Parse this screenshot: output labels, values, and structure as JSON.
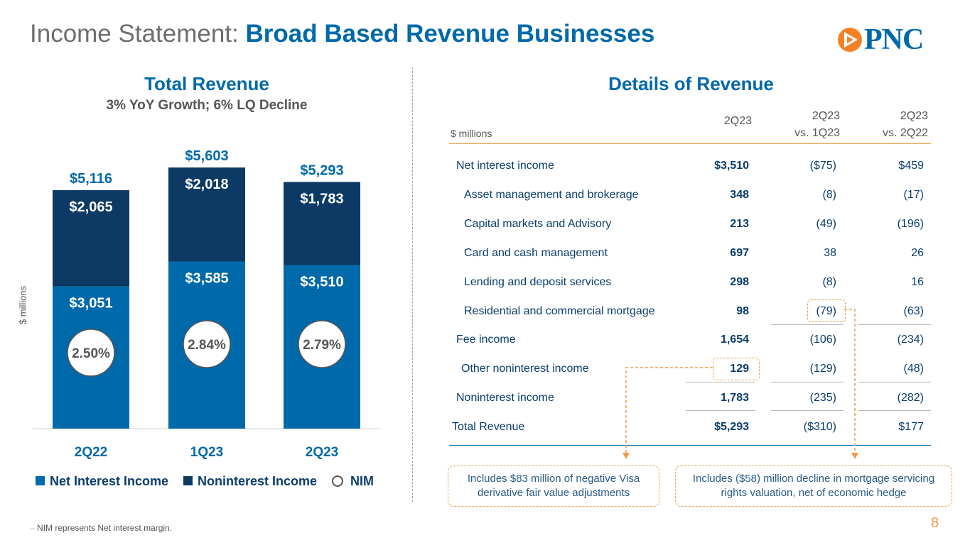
{
  "header": {
    "title_prefix": "Income Statement:",
    "title_main": "Broad Based Revenue Businesses",
    "logo_text": "PNC",
    "page_number": "8"
  },
  "chart_data": {
    "type": "bar",
    "title": "Total Revenue",
    "subtitle": "3% YoY Growth; 6% LQ Decline",
    "ylabel": "$ millions",
    "categories": [
      "2Q22",
      "1Q23",
      "2Q23"
    ],
    "ylim": [
      0,
      5603
    ],
    "series": [
      {
        "name": "Net Interest Income",
        "color": "#0069aa",
        "values": [
          3051,
          3585,
          3510
        ],
        "labels": [
          "$3,051",
          "$3,585",
          "$3,510"
        ]
      },
      {
        "name": "Noninterest Income",
        "color": "#0c3a64",
        "values": [
          2065,
          2018,
          1783
        ],
        "labels": [
          "$2,065",
          "$2,018",
          "$1,783"
        ]
      }
    ],
    "totals": [
      5116,
      5603,
      5293
    ],
    "total_labels": [
      "$5,116",
      "$5,603",
      "$5,293"
    ],
    "nim_labels": [
      "2.50%",
      "2.84%",
      "2.79%"
    ],
    "legend": [
      {
        "label": "Net Interest Income",
        "marker": "square-blue"
      },
      {
        "label": "Noninterest Income",
        "marker": "square-navy"
      },
      {
        "label": "NIM",
        "marker": "ring"
      }
    ]
  },
  "details": {
    "title": "Details of Revenue",
    "unit": "$ millions",
    "columns": [
      {
        "line1": "",
        "line2": "2Q23"
      },
      {
        "line1": "2Q23",
        "line2": "vs. 1Q23"
      },
      {
        "line1": "2Q23",
        "line2": "vs. 2Q22"
      }
    ],
    "rows": [
      {
        "label": "Net interest income",
        "v1": "$3,510",
        "v2": "($75)",
        "v3": "$459"
      },
      {
        "label": "Asset management and brokerage",
        "v1": "348",
        "v2": "(8)",
        "v3": "(17)"
      },
      {
        "label": "Capital markets  and Advisory",
        "v1": "213",
        "v2": "(49)",
        "v3": "(196)"
      },
      {
        "label": "Card and cash management",
        "v1": "697",
        "v2": "38",
        "v3": "26"
      },
      {
        "label": "Lending and deposit services",
        "v1": "298",
        "v2": "(8)",
        "v3": "16"
      },
      {
        "label": "Residential and commercial mortgage",
        "v1": "98",
        "v2": "(79)",
        "v3": "(63)"
      },
      {
        "label": "Fee income",
        "v1": "1,654",
        "v2": "(106)",
        "v3": "(234)"
      },
      {
        "label": "Other noninterest income",
        "v1": "129",
        "v2": "(129)",
        "v3": "(48)"
      },
      {
        "label": "Noninterest income",
        "v1": "1,783",
        "v2": "(235)",
        "v3": "(282)"
      },
      {
        "label": "Total Revenue",
        "v1": "$5,293",
        "v2": "($310)",
        "v3": "$177"
      }
    ],
    "notes": {
      "visa": "Includes $83 million of negative Visa derivative fair value adjustments",
      "mortgage": "Includes ($58) million decline in mortgage servicing rights valuation, net of economic hedge"
    }
  },
  "footnote": "NIM represents Net interest margin."
}
